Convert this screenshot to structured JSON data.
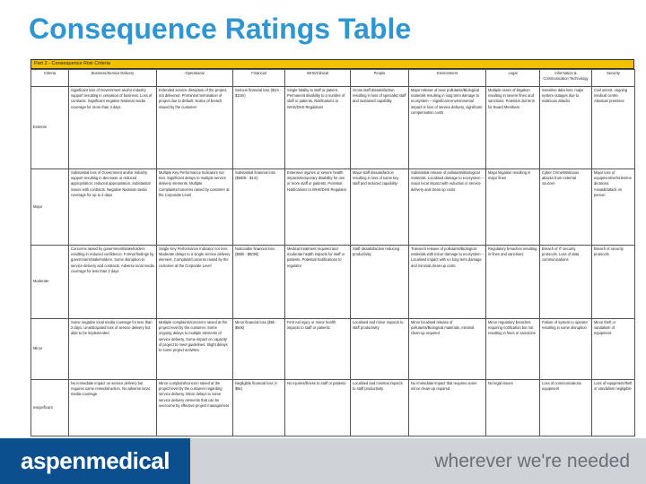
{
  "title": "Consequence Ratings Table",
  "table_caption": "Part 2 - Consequence Risk Criteria",
  "columns": [
    "Criteria",
    "Business/Service Delivery",
    "Operational",
    "Financial",
    "WHS/Clinical",
    "People",
    "Environment",
    "Legal",
    "Information & Communication Technology",
    "Security"
  ],
  "rows": [
    {
      "rating": "Extreme",
      "cells": [
        "Significant loss of Government and/or industry support resulting in cessation of business. Loss of contracts. Significant negative National media coverage for more than 3 days",
        "Extended service disruption of the project, not delivered. Prominent termination of project due to default. Notice of breach issued by the customer",
        "Serious financial loss ($1m - $10m)",
        "Single fatality to staff or patient. Permanent disability to a number of staff or patients. Notifications to WHS/DHS Regulators",
        "Gross staff dissatisfaction resulting in loss of specialist staff and sustained capability",
        "Major release of toxic pollutants/Biological materials resulting in long term damage to ecosystem – Significant environmental impact or loss of service delivery, significant compensation costs",
        "Multiple cases of litigation resulting in severe fines and sanctions. Potential Jail term for Board Members",
        "Sensitive data loss, major system outages due to malicious attacks",
        "Civil unrest, ongoing medical centre. Absolute premises"
      ]
    },
    {
      "rating": "Major",
      "cells": [
        "Substantial loss of Government and/or industry support resulting in decrease or reduced appropriation; reduced appropriation. Substantial issues with contracts. Negative National media coverage for up to 2 days",
        "Multiple Key Performance Indicators not met. Significant delays to multiple service delivery elements. Multiple Complaints/concerns raised by customer at the Corporate Level",
        "Substantial financial loss ($500k - $1m)",
        "Extensive injuries or severe health impacts/temporary disability for one or more staff or patients. Potential Notifications to WHS/DHS Regulator",
        "Major staff dissatisfaction resulting in loss of some key staff and reduced capability",
        "Substantial release of pollutants/Biological materials. Localised damage to ecosystem – major local impact with reduction in service delivery and clean up costs",
        "Major litigation resulting in major fines",
        "Cyber Crime/Malicious attacks from external sources",
        "Major loss of equipment/vehicles/medications. Assault/attack on person"
      ]
    },
    {
      "rating": "Moderate",
      "cells": [
        "Concerns raised by government/stakeholders resulting in reduced confidence. Formal findings by government/stakeholders. Some disruption to service delivery and contracts. Adverse local media coverage for less than 2 days",
        "Single Key Performance Indicator not met. Moderate delays to a single service delivery element. Complaint/concerns raised by the customer at the Corporate Level",
        "Noticeable financial loss ($50k - $500k)",
        "Medical treatment required and moderate health impacts for staff or patients. Potential Notifications to regulator",
        "Staff dissatisfaction reducing productivity",
        "Transient release of pollutants/Biological materials with minor damage to ecosystem – Localised impact with no long term damage and minimal clean-up costs",
        "Regulatory breaches resulting in fines and sanctions",
        "Breach of IT security protocols. Loss of data communications",
        "Breach of security protocols"
      ]
    },
    {
      "rating": "Minor",
      "cells": [
        "Some negative local media coverage for less than 2 days. Unanticipated loss of service delivery but able to be implemented",
        "Multiple complaints/concerns raised at the project level by the customer. Some ongoing delays to multiple elements of service delivery. Some impact on capacity of project to meet guidelines. Slight delays to some project activities",
        "Minor financial loss ($5k - $50k)",
        "First Aid injury or minor health impacts to staff or patients",
        "Localised and minor impacts to staff productivity",
        "Minor localised release of pollutants/Biological materials, minimal clean-up required",
        "Minor regulatory breaches requiring notification but not resulting in fines or sanctions",
        "Failure of system to operate resulting in some disruption",
        "Minor theft or vandalism of equipment"
      ]
    },
    {
      "rating": "Insignificant",
      "cells": [
        "No immediate impact on service delivery but requires some remedial action. No adverse local media coverage",
        "Minor complaint/concern raised at the project level by the customer regarding service delivery. Minor delays to some service delivery elements that can be overcome by effective project management",
        "Negligible financial loss (< $5k)",
        "No injuries/illness to staff or patients",
        "Localised and minimal impacts to staff productivity",
        "No immediate impact that requires some minor clean-up required",
        "No legal issues",
        "Loss of communications equipment",
        "Loss of equipment/theft or vandalism negligible"
      ]
    }
  ],
  "footer": {
    "logo": "aspenmedical",
    "tagline": "wherever we're needed"
  }
}
